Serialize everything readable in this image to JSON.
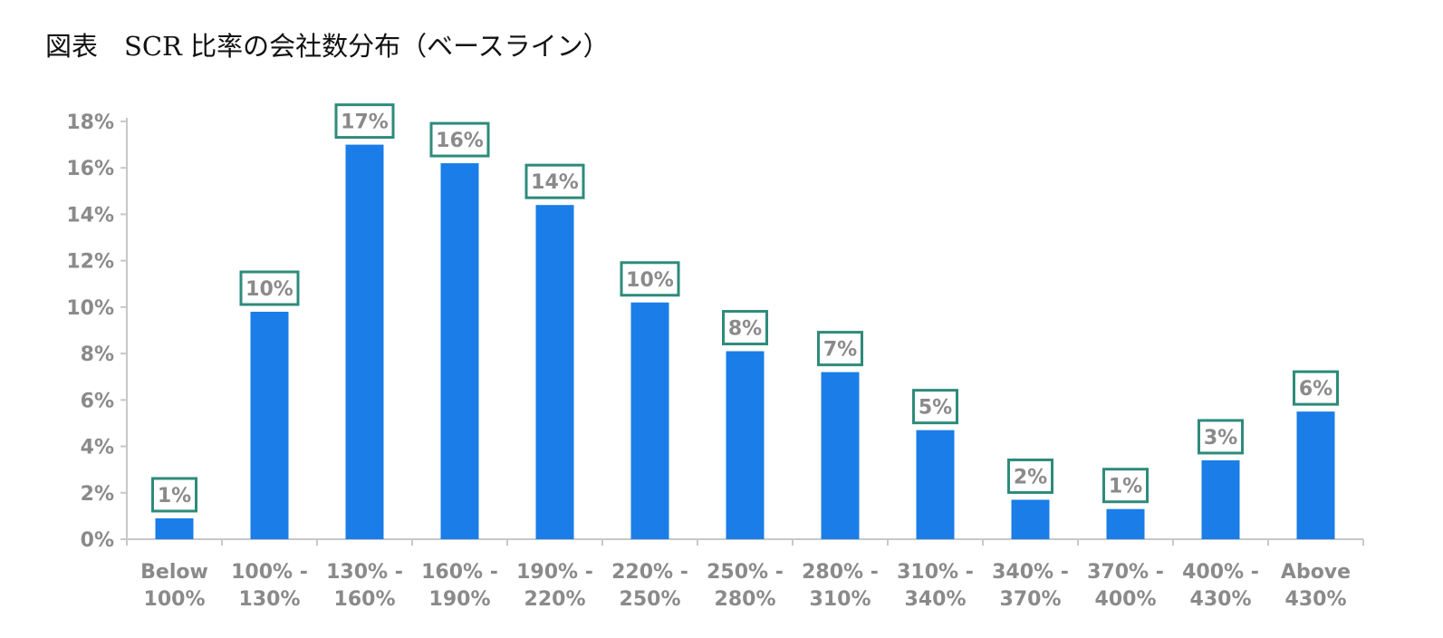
{
  "title": "図表　SCR 比率の会社数分布（ベースライン）",
  "colors": {
    "bar": "#1a7de8",
    "label_border": "#2e8b7a",
    "text": "#8a8a8a"
  },
  "chart_data": {
    "type": "bar",
    "title": "図表　SCR 比率の会社数分布（ベースライン）",
    "xlabel": "",
    "ylabel": "",
    "ylim": [
      0,
      18
    ],
    "yticks": [
      0,
      2,
      4,
      6,
      8,
      10,
      12,
      14,
      16,
      18
    ],
    "ytick_labels": [
      "0%",
      "2%",
      "4%",
      "6%",
      "8%",
      "10%",
      "12%",
      "14%",
      "16%",
      "18%"
    ],
    "categories": [
      [
        "Below",
        "100%"
      ],
      [
        "100% -",
        "130%"
      ],
      [
        "130% -",
        "160%"
      ],
      [
        "160% -",
        "190%"
      ],
      [
        "190% -",
        "220%"
      ],
      [
        "220% -",
        "250%"
      ],
      [
        "250% -",
        "280%"
      ],
      [
        "280% -",
        "310%"
      ],
      [
        "310% -",
        "340%"
      ],
      [
        "340% -",
        "370%"
      ],
      [
        "370% -",
        "400%"
      ],
      [
        "400% -",
        "430%"
      ],
      [
        "Above",
        "430%"
      ]
    ],
    "values": [
      0.9,
      9.8,
      17.0,
      16.2,
      14.4,
      10.2,
      8.1,
      7.2,
      4.7,
      1.7,
      1.3,
      3.4,
      5.5
    ],
    "data_labels": [
      "1%",
      "10%",
      "17%",
      "16%",
      "14%",
      "10%",
      "8%",
      "7%",
      "5%",
      "2%",
      "1%",
      "3%",
      "6%"
    ],
    "grid": false,
    "legend": "none"
  }
}
